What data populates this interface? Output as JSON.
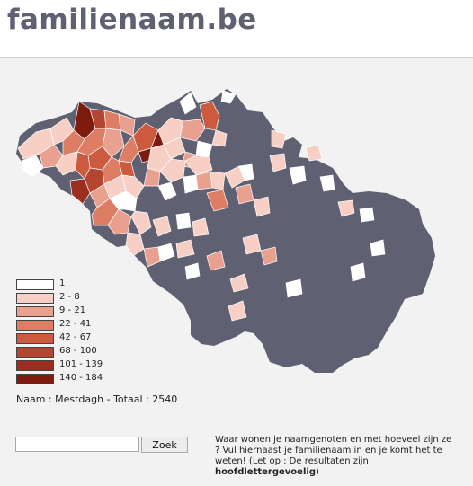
{
  "header": {
    "logo_text": "familienaam.be"
  },
  "map": {
    "base_color": "#5f6072",
    "outline_color": "#ffffff",
    "legend": [
      {
        "label": "1",
        "color": "#ffffff"
      },
      {
        "label": "2 - 8",
        "color": "#f7cfc5"
      },
      {
        "label": "9 - 21",
        "color": "#eaa08e"
      },
      {
        "label": "22 - 41",
        "color": "#dd7e64"
      },
      {
        "label": "42 - 67",
        "color": "#cb5a3f"
      },
      {
        "label": "68 - 100",
        "color": "#b44530"
      },
      {
        "label": "101 - 139",
        "color": "#9a2f20"
      },
      {
        "label": "140 - 184",
        "color": "#7e1b10"
      }
    ]
  },
  "info": {
    "text": "Naam : Mestdagh - Totaal : 2540"
  },
  "search": {
    "value": "",
    "placeholder": "",
    "button_label": "Zoek"
  },
  "help": {
    "text": "Waar wonen je naamgenoten en met hoeveel zijn ze ? Vul hiernaast je familienaam in en je komt het te weten! (Let op : De resultaten zijn ",
    "bold": "hoofdlettergevoelig",
    "end": ")"
  }
}
